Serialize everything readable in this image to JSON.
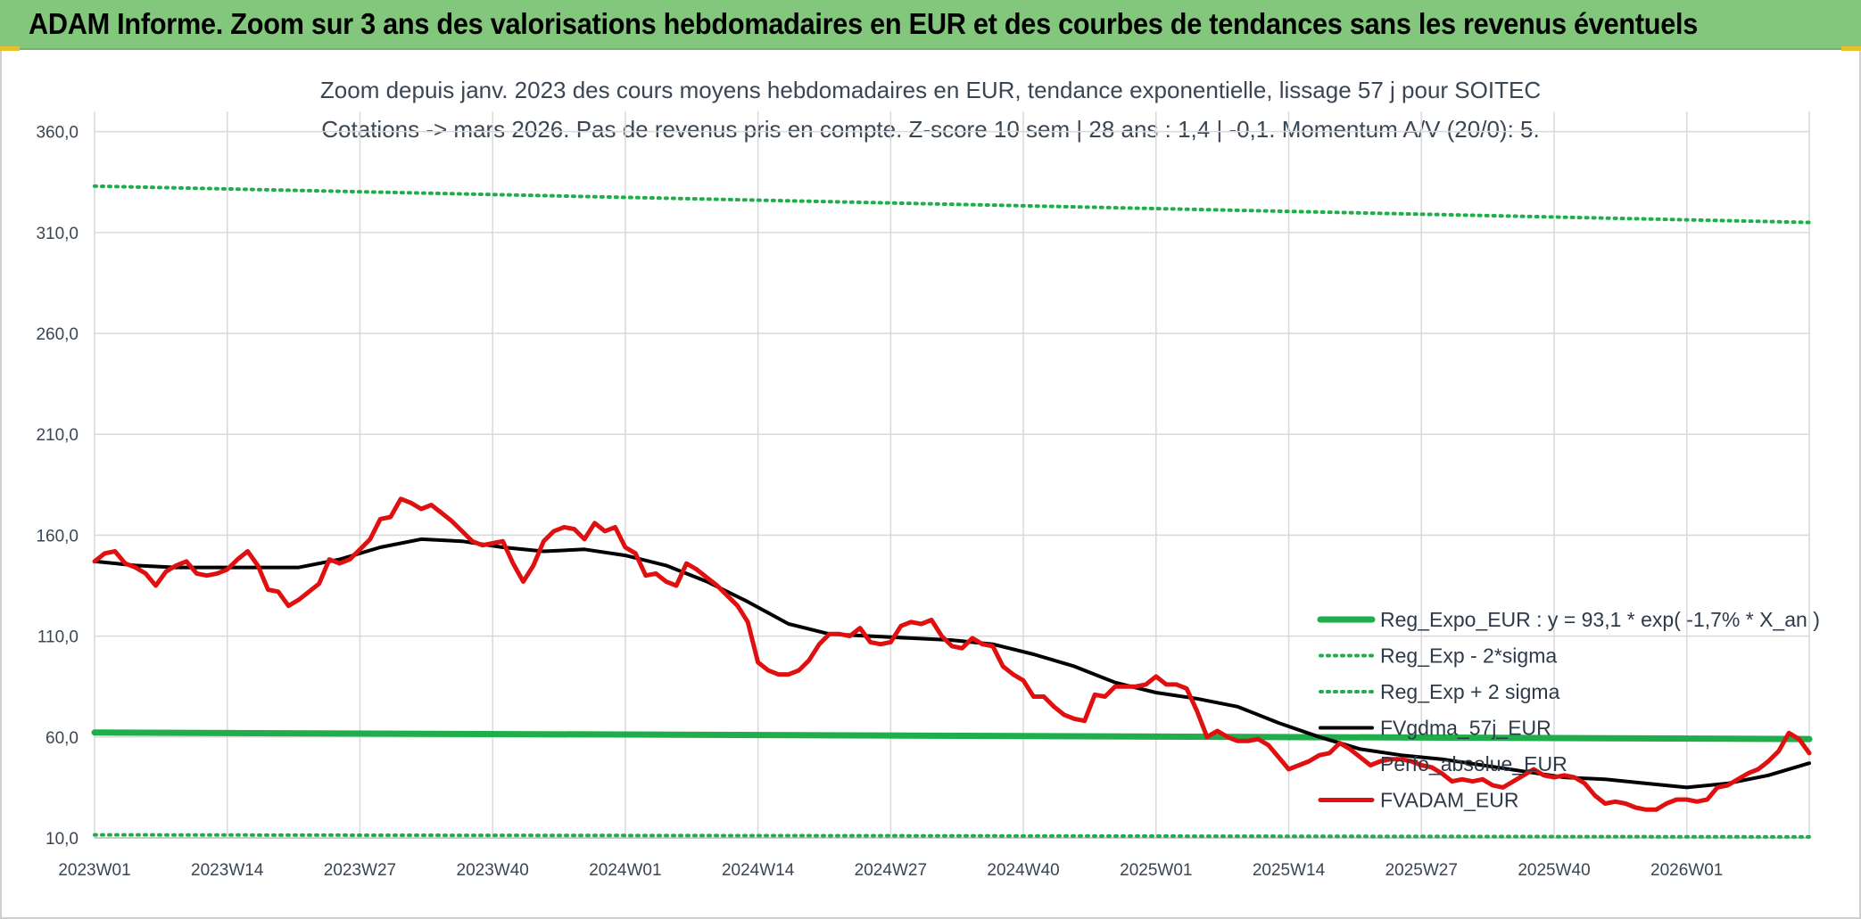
{
  "banner": {
    "title": "ADAM Informe. Zoom sur 3 ans des valorisations hebdomadaires en EUR et des courbes de tendances sans les revenus éventuels"
  },
  "colors": {
    "banner": "#82c77b",
    "reg_expo": "#1fae4b",
    "sigma": "#1fae4b",
    "fvgdma": "#000000",
    "fvadam": "#e01010",
    "perfo": "#7a7a7a"
  },
  "chart_data": {
    "type": "line",
    "title": "Zoom depuis janv. 2023 des cours moyens hebdomadaires en EUR, tendance exponentielle, lissage 57 j pour SOITEC",
    "subtitle": "Cotations -> mars 2026. Pas de revenus pris en compte. Z-score 10 sem | 28 ans : 1,4 | -0,1. Momentum A/V (20/0): 5.",
    "xlabel": "",
    "ylabel": "",
    "ylim": [
      10,
      370
    ],
    "yticks": [
      "10,0",
      "60,0",
      "110,0",
      "160,0",
      "210,0",
      "260,0",
      "310,0",
      "360,0"
    ],
    "ytick_values": [
      10,
      60,
      110,
      160,
      210,
      260,
      310,
      360
    ],
    "xticks": [
      "2023W01",
      "2023W14",
      "2023W27",
      "2023W40",
      "2024W01",
      "2024W14",
      "2024W27",
      "2024W40",
      "2025W01",
      "2025W14",
      "2025W27",
      "2025W40",
      "2026W01"
    ],
    "xtick_weeks": [
      0,
      13,
      26,
      39,
      52,
      65,
      78,
      91,
      104,
      117,
      130,
      143,
      156
    ],
    "grid": true,
    "legend_position": "right",
    "series": [
      {
        "name": "Reg_Expo_EUR : y = 93,1 * exp( -1,7% *  X_an )",
        "style": "solid-thick",
        "x": [
          0,
          168
        ],
        "y": [
          62.2,
          59.0
        ]
      },
      {
        "name": "Reg_Exp - 2*sigma",
        "style": "dotted",
        "x": [
          0,
          168
        ],
        "y": [
          11.5,
          10.5
        ]
      },
      {
        "name": "Reg_Exp + 2 sigma",
        "style": "dotted",
        "x": [
          0,
          168
        ],
        "y": [
          333,
          315
        ]
      },
      {
        "name": "FVgdma_57j_EUR",
        "style": "solid",
        "x": [
          0,
          4,
          8,
          12,
          16,
          20,
          24,
          28,
          32,
          36,
          40,
          44,
          48,
          52,
          56,
          60,
          64,
          68,
          72,
          76,
          80,
          84,
          88,
          92,
          96,
          100,
          104,
          108,
          112,
          116,
          120,
          124,
          128,
          132,
          136,
          140,
          144,
          148,
          152,
          156,
          160,
          164,
          168
        ],
        "y": [
          147,
          145,
          144,
          144,
          144,
          144,
          148,
          154,
          158,
          157,
          154,
          152,
          153,
          150,
          145,
          137,
          127,
          116,
          111,
          110,
          109,
          108,
          106,
          101,
          95,
          87,
          82,
          79,
          75,
          67,
          60,
          54,
          51,
          49,
          46,
          43,
          40,
          39,
          37,
          35,
          37,
          41,
          47
        ]
      },
      {
        "name": "Perfo_absolue_EUR",
        "style": "hidden",
        "x": [],
        "y": []
      },
      {
        "name": "FVADAM_EUR",
        "style": "solid-thick",
        "x": [
          0,
          1,
          2,
          3,
          4,
          5,
          6,
          7,
          8,
          9,
          10,
          11,
          12,
          13,
          14,
          15,
          16,
          17,
          18,
          19,
          20,
          21,
          22,
          23,
          24,
          25,
          26,
          27,
          28,
          29,
          30,
          31,
          32,
          33,
          34,
          35,
          36,
          37,
          38,
          39,
          40,
          41,
          42,
          43,
          44,
          45,
          46,
          47,
          48,
          49,
          50,
          51,
          52,
          53,
          54,
          55,
          56,
          57,
          58,
          59,
          60,
          61,
          62,
          63,
          64,
          65,
          66,
          67,
          68,
          69,
          70,
          71,
          72,
          73,
          74,
          75,
          76,
          77,
          78,
          79,
          80,
          81,
          82,
          83,
          84,
          85,
          86,
          87,
          88,
          89,
          90,
          91,
          92,
          93,
          94,
          95,
          96,
          97,
          98,
          99,
          100,
          101,
          102,
          103,
          104,
          105,
          106,
          107,
          108,
          109,
          110,
          111,
          112,
          113,
          114,
          115,
          116,
          117,
          118,
          119,
          120,
          121,
          122,
          123,
          124,
          125,
          126,
          127,
          128,
          129,
          130,
          131,
          132,
          133,
          134,
          135,
          136,
          137,
          138,
          139,
          140,
          141,
          142,
          143,
          144,
          145,
          146,
          147,
          148,
          149,
          150,
          151,
          152,
          153,
          154,
          155,
          156,
          157,
          158,
          159,
          160,
          161,
          162,
          163,
          164,
          165,
          166,
          167,
          168
        ],
        "y": [
          147,
          151,
          152,
          146,
          144,
          141,
          135,
          142,
          145,
          147,
          141,
          140,
          141,
          143,
          148,
          152,
          145,
          133,
          132,
          125,
          128,
          132,
          136,
          148,
          146,
          148,
          153,
          158,
          168,
          169,
          178,
          176,
          173,
          175,
          171,
          167,
          162,
          157,
          155,
          156,
          157,
          146,
          137,
          145,
          157,
          162,
          164,
          163,
          158,
          166,
          162,
          164,
          154,
          151,
          140,
          141,
          137,
          135,
          146,
          143,
          139,
          135,
          130,
          125,
          117,
          97,
          93,
          91,
          91,
          93,
          98,
          106,
          111,
          111,
          110,
          114,
          107,
          106,
          107,
          115,
          117,
          116,
          118,
          110,
          105,
          104,
          109,
          106,
          105,
          95,
          91,
          88,
          80,
          80,
          75,
          71,
          69,
          68,
          81,
          80,
          85,
          85,
          85,
          86,
          90,
          86,
          86,
          84,
          73,
          60,
          63,
          60,
          58,
          58,
          59,
          56,
          50,
          44,
          46,
          48,
          51,
          52,
          57,
          54,
          50,
          46,
          48,
          49,
          49,
          48,
          46,
          45,
          42,
          38,
          39,
          38,
          39,
          36,
          35,
          38,
          41,
          44,
          41,
          40,
          41,
          40,
          37,
          31,
          27,
          28,
          27,
          25,
          24,
          24,
          27,
          29,
          29,
          28,
          29,
          35,
          36,
          39,
          42,
          44,
          48,
          53,
          62,
          59,
          52
        ]
      }
    ]
  }
}
